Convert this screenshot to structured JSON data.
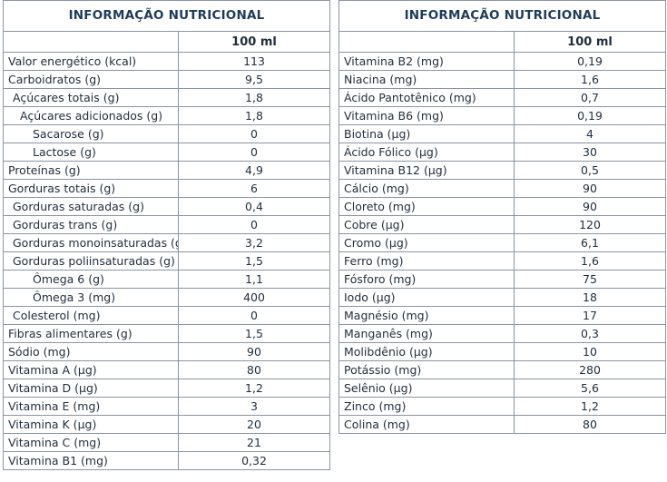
{
  "left_table": {
    "title": "INFORMAÇÃO NUTRICIONAL",
    "column_header": "100 ml",
    "rows": [
      {
        "name": "Valor energético (kcal)",
        "value": "113",
        "indent": 0
      },
      {
        "name": "Carboidratos (g)",
        "value": "9,5",
        "indent": 0
      },
      {
        "name": "Açúcares totais (g)",
        "value": "1,8",
        "indent": 1
      },
      {
        "name": "Açúcares adicionados (g)",
        "value": "1,8",
        "indent": 2
      },
      {
        "name": "Sacarose (g)",
        "value": "0",
        "indent": 3
      },
      {
        "name": "Lactose (g)",
        "value": "0",
        "indent": 3
      },
      {
        "name": "Proteínas (g)",
        "value": "4,9",
        "indent": 0
      },
      {
        "name": "Gorduras totais (g)",
        "value": "6",
        "indent": 0
      },
      {
        "name": "Gorduras saturadas (g)",
        "value": "0,4",
        "indent": 1
      },
      {
        "name": "Gorduras trans (g)",
        "value": "0",
        "indent": 1
      },
      {
        "name": "Gorduras monoinsaturadas (g)",
        "value": "3,2",
        "indent": 1
      },
      {
        "name": "Gorduras poliinsaturadas (g)",
        "value": "1,5",
        "indent": 1
      },
      {
        "name": "Ômega 6 (g)",
        "value": "1,1",
        "indent": 3
      },
      {
        "name": "Ômega 3 (mg)",
        "value": "400",
        "indent": 3
      },
      {
        "name": "Colesterol (mg)",
        "value": "0",
        "indent": 1
      },
      {
        "name": "Fibras alimentares (g)",
        "value": "1,5",
        "indent": 0
      },
      {
        "name": "Sódio (mg)",
        "value": "90",
        "indent": 0
      },
      {
        "name": "Vitamina A (µg)",
        "value": "80",
        "indent": 0
      },
      {
        "name": "Vitamina D (µg)",
        "value": "1,2",
        "indent": 0
      },
      {
        "name": "Vitamina E (mg)",
        "value": "3",
        "indent": 0
      },
      {
        "name": "Vitamina K (µg)",
        "value": "20",
        "indent": 0
      },
      {
        "name": "Vitamina C (mg)",
        "value": "21",
        "indent": 0
      },
      {
        "name": "Vitamina B1 (mg)",
        "value": "0,32",
        "indent": 0
      }
    ]
  },
  "right_table": {
    "title": "INFORMAÇÃO NUTRICIONAL",
    "column_header": "100 ml",
    "rows": [
      {
        "name": "Vitamina B2 (mg)",
        "value": "0,19"
      },
      {
        "name": "Niacina (mg)",
        "value": "1,6"
      },
      {
        "name": "Ácido Pantotênico (mg)",
        "value": "0,7"
      },
      {
        "name": "Vitamina B6 (mg)",
        "value": "0,19"
      },
      {
        "name": "Biotina (µg)",
        "value": "4"
      },
      {
        "name": "Ácido Fólico (µg)",
        "value": "30"
      },
      {
        "name": "Vitamina B12 (µg)",
        "value": "0,5"
      },
      {
        "name": "Cálcio (mg)",
        "value": "90"
      },
      {
        "name": "Cloreto (mg)",
        "value": "90"
      },
      {
        "name": "Cobre (µg)",
        "value": "120"
      },
      {
        "name": "Cromo (µg)",
        "value": "6,1"
      },
      {
        "name": "Ferro (mg)",
        "value": "1,6"
      },
      {
        "name": "Fósforo (mg)",
        "value": "75"
      },
      {
        "name": "Iodo (µg)",
        "value": "18"
      },
      {
        "name": "Magnésio (mg)",
        "value": "17"
      },
      {
        "name": "Manganês (mg)",
        "value": "0,3"
      },
      {
        "name": "Molibdênio (µg)",
        "value": "10"
      },
      {
        "name": "Potássio (mg)",
        "value": "280"
      },
      {
        "name": "Selênio (µg)",
        "value": "5,6"
      },
      {
        "name": "Zinco (mg)",
        "value": "1,2"
      },
      {
        "name": "Colina (mg)",
        "value": "80"
      }
    ]
  }
}
